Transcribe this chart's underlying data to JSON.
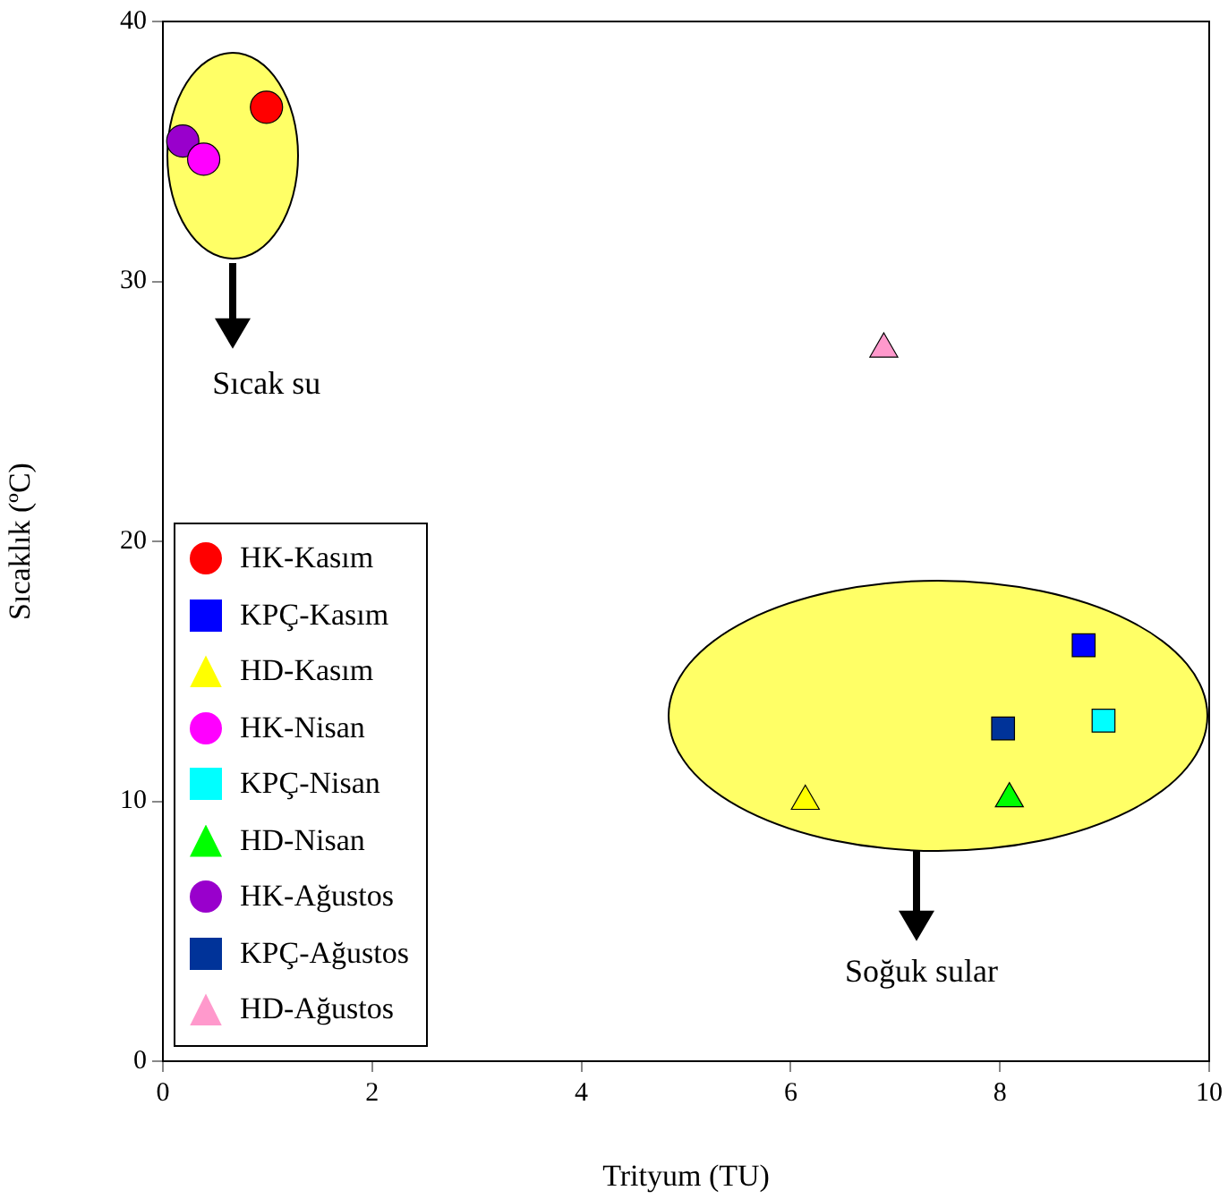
{
  "chart_data": {
    "type": "scatter",
    "xlabel": "Trityum (TU)",
    "ylabel": "Sıcaklık (ºC)",
    "xlim": [
      0,
      10
    ],
    "xticks": [
      0,
      2,
      4,
      6,
      8,
      10
    ],
    "ylim": [
      0,
      40
    ],
    "yticks": [
      0,
      10,
      20,
      30,
      40
    ],
    "grid": false,
    "legend": "bottom left",
    "annotations": [
      "Sıcak su",
      "Soğuk sular"
    ],
    "series": [
      {
        "name": "HK-Kasım",
        "color": "#ff0000",
        "marker": "circle",
        "x": [
          0.99
        ],
        "values": [
          36.7
        ]
      },
      {
        "name": "KPÇ-Kasım",
        "color": "#0000ff",
        "marker": "square",
        "x": [
          8.8
        ],
        "values": [
          16.0
        ]
      },
      {
        "name": "HD-Kasım",
        "color": "#ffff00",
        "marker": "triangle",
        "x": [
          6.14
        ],
        "values": [
          10.0
        ]
      },
      {
        "name": "HK-Nisan",
        "color": "#ff00ff",
        "marker": "circle",
        "x": [
          0.39
        ],
        "values": [
          34.7
        ]
      },
      {
        "name": "KPÇ-Nisan",
        "color": "#00ffff",
        "marker": "square",
        "x": [
          8.99
        ],
        "values": [
          13.1
        ]
      },
      {
        "name": "HD-Nisan",
        "color": "#00ff00",
        "marker": "triangle",
        "x": [
          8.09
        ],
        "values": [
          10.1
        ]
      },
      {
        "name": "HK-Ağustos",
        "color": "#9900cc",
        "marker": "circle",
        "x": [
          0.19
        ],
        "values": [
          35.4
        ]
      },
      {
        "name": "KPÇ-Ağustos",
        "color": "#003399",
        "marker": "square",
        "x": [
          8.03
        ],
        "values": [
          12.8
        ]
      },
      {
        "name": "HD-Ağustos",
        "color": "#ff99cc",
        "marker": "triangle",
        "x": [
          6.89
        ],
        "values": [
          27.4
        ]
      }
    ]
  }
}
